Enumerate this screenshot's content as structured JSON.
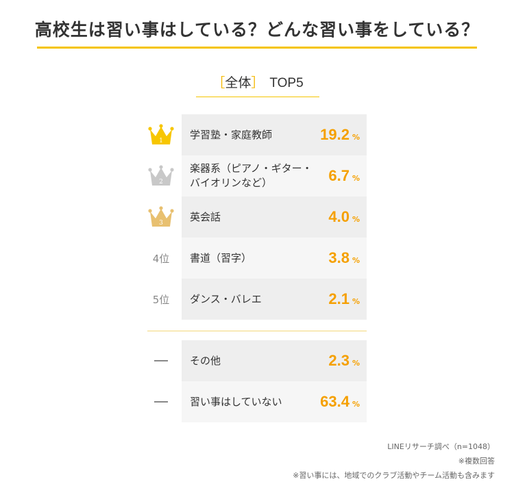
{
  "header": {
    "title": "高校生は習い事はしている？どんな習い事をしている？"
  },
  "section": {
    "bracket_open": "［",
    "label": "全体",
    "bracket_close": "］",
    "suffix": "TOP5"
  },
  "chart_data": {
    "type": "table",
    "title": "高校生は習い事はしている？どんな習い事をしている？",
    "subtitle": "［全体］TOP5",
    "unit": "%",
    "rows": [
      {
        "rank": "1",
        "label": "学習塾・家庭教師",
        "value": 19.2,
        "value_text": "19.2",
        "badge": "gold-crown"
      },
      {
        "rank": "2",
        "label": "楽器系（ピアノ・ギター・バイオリンなど）",
        "label_line1": "楽器系（ピアノ・ギター・",
        "label_line2": "バイオリンなど）",
        "value": 6.7,
        "value_text": "6.7",
        "badge": "silver-crown"
      },
      {
        "rank": "3",
        "label": "英会話",
        "value": 4.0,
        "value_text": "4.0",
        "badge": "bronze-crown"
      },
      {
        "rank": "4位",
        "label": "書道（習字）",
        "value": 3.8,
        "value_text": "3.8"
      },
      {
        "rank": "5位",
        "label": "ダンス・バレエ",
        "value": 2.1,
        "value_text": "2.1"
      }
    ],
    "others": [
      {
        "rank": "―",
        "label": "その他",
        "value": 2.3,
        "value_text": "2.3"
      },
      {
        "rank": "―",
        "label": "習い事はしていない",
        "value": 63.4,
        "value_text": "63.4"
      }
    ]
  },
  "colors": {
    "accent": "#f5a000",
    "rule": "#f5c400",
    "gold": "#f7c600",
    "silver": "#c8c8c8",
    "bronze": "#e8c070",
    "row_bg_dark": "#eeeeee",
    "row_bg_light": "#f6f6f6"
  },
  "footer": {
    "source": "LINEリサーチ調べ（n=1048）",
    "note1": "※複数回答",
    "note2": "※習い事には、地域でのクラブ活動やチーム活動も含みます"
  }
}
